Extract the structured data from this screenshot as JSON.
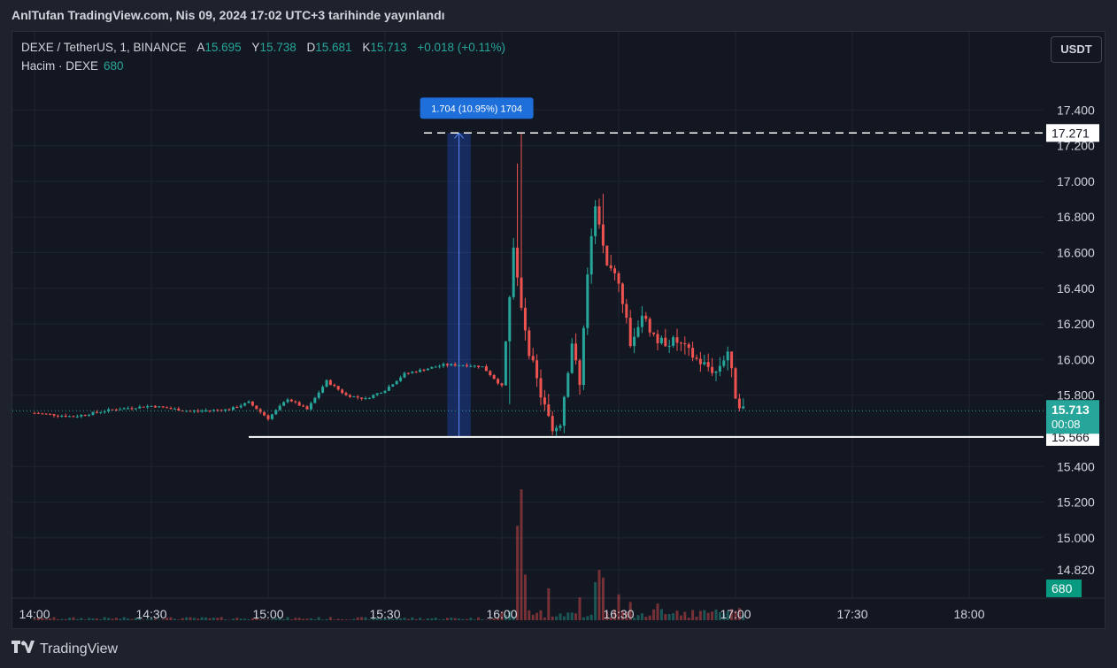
{
  "header": {
    "publish_text": "AnlTufan TradingView.com, Nis 09, 2024 17:02 UTC+3 tarihinde yayınlandı"
  },
  "legend": {
    "symbol": "DEXE / TetherUS, 1, BINANCE",
    "open_label": "A",
    "open": "15.695",
    "high_label": "Y",
    "high": "15.738",
    "low_label": "D",
    "low": "15.681",
    "close_label": "K",
    "close": "15.713",
    "change": "+0.018 (+0.11%)",
    "volume_label": "Hacim · DEXE",
    "volume_value": "680"
  },
  "currency_button": "USDT",
  "footer": {
    "brand": "TradingView"
  },
  "colors": {
    "up": "#26a69a",
    "down": "#ef5350",
    "background": "#131722",
    "grid": "#1f2433",
    "measure": "#2962ff"
  },
  "chart_data": {
    "type": "candlestick",
    "title": "",
    "y_ticks": [
      "17.400",
      "17.200",
      "17.000",
      "16.800",
      "16.600",
      "16.400",
      "16.200",
      "16.000",
      "15.800",
      "15.400",
      "15.200",
      "15.000",
      "14.820"
    ],
    "x_ticks": [
      "14:00",
      "14:30",
      "15:00",
      "15:30",
      "16:00",
      "16:30",
      "17:00",
      "17:30",
      "18:00"
    ],
    "ylim": [
      14.69,
      17.75
    ],
    "price_labels": {
      "current": "15.713",
      "countdown": "00:08",
      "upper_line": "17.271",
      "lower_line": "15.566",
      "volume": "680"
    },
    "horizontal_lines": [
      {
        "value": 17.271,
        "style": "dashed",
        "label": "17.271"
      },
      {
        "value": 15.566,
        "style": "solid",
        "label": "15.566"
      }
    ],
    "measure_tool": {
      "label": "1.704 (10.95%) 1704",
      "from": 15.566,
      "to": 17.271
    },
    "anchors": [
      [
        "14:00",
        15.7
      ],
      [
        "14:10",
        15.68
      ],
      [
        "14:20",
        15.72
      ],
      [
        "14:30",
        15.74
      ],
      [
        "14:40",
        15.71
      ],
      [
        "14:50",
        15.72
      ],
      [
        "14:55",
        15.76
      ],
      [
        "15:00",
        15.67
      ],
      [
        "15:05",
        15.78
      ],
      [
        "15:10",
        15.72
      ],
      [
        "15:15",
        15.88
      ],
      [
        "15:20",
        15.8
      ],
      [
        "15:25",
        15.78
      ],
      [
        "15:30",
        15.83
      ],
      [
        "15:35",
        15.92
      ],
      [
        "15:45",
        15.97
      ],
      [
        "15:50",
        15.97
      ],
      [
        "15:55",
        15.96
      ],
      [
        "16:00",
        15.85
      ],
      [
        "16:03",
        16.6
      ],
      [
        "16:05",
        16.3
      ],
      [
        "16:07",
        16.05
      ],
      [
        "16:10",
        15.8
      ],
      [
        "16:13",
        15.6
      ],
      [
        "16:15",
        15.65
      ],
      [
        "16:18",
        16.1
      ],
      [
        "16:20",
        15.85
      ],
      [
        "16:22",
        16.5
      ],
      [
        "16:24",
        16.85
      ],
      [
        "16:27",
        16.5
      ],
      [
        "16:30",
        16.45
      ],
      [
        "16:33",
        16.1
      ],
      [
        "16:36",
        16.25
      ],
      [
        "16:40",
        16.1
      ],
      [
        "16:45",
        16.1
      ],
      [
        "16:50",
        16.0
      ],
      [
        "16:55",
        15.93
      ],
      [
        "16:58",
        16.05
      ],
      [
        "17:00",
        15.8
      ],
      [
        "17:02",
        15.71
      ]
    ],
    "spikes": [
      [
        "16:05",
        17.271
      ],
      [
        "16:04",
        17.1
      ],
      [
        "16:26",
        16.93
      ],
      [
        "16:14",
        15.56
      ],
      [
        "16:02",
        15.75
      ]
    ],
    "volume_spikes": [
      [
        "16:05",
        860
      ],
      [
        "16:04",
        620
      ],
      [
        "16:06",
        300
      ],
      [
        "16:12",
        210
      ],
      [
        "16:20",
        150
      ],
      [
        "16:24",
        250
      ],
      [
        "16:25",
        330
      ],
      [
        "16:26",
        280
      ],
      [
        "16:30",
        170
      ],
      [
        "16:33",
        120
      ],
      [
        "16:40",
        110
      ],
      [
        "17:01",
        80
      ]
    ]
  }
}
